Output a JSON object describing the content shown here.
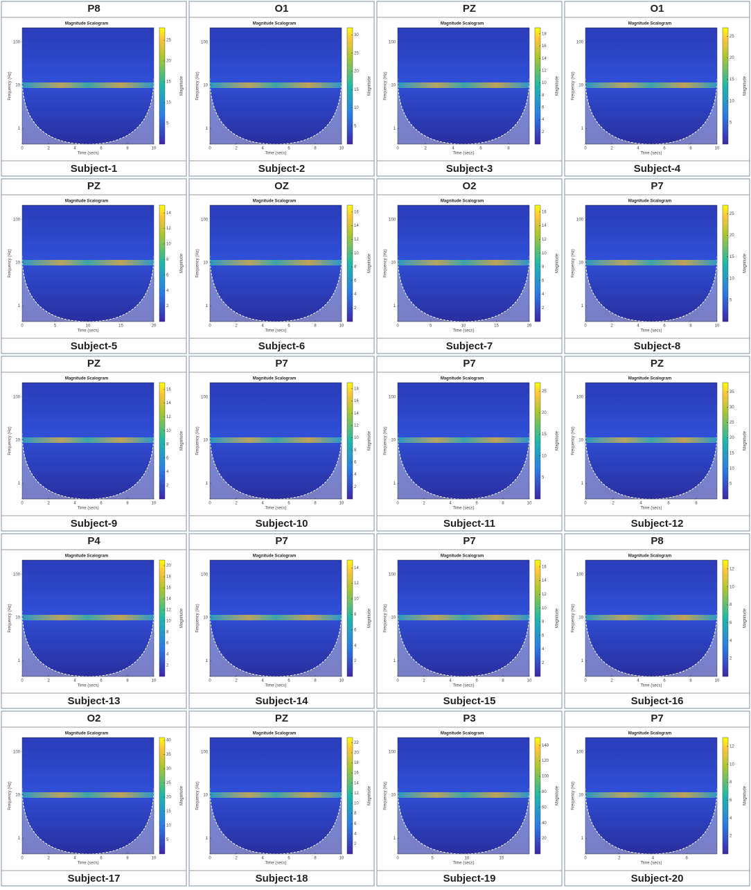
{
  "panel_title": "Magnitude Scalogram",
  "x_label": "Time (secs)",
  "y_label": "Frequency (Hz)",
  "colorbar_label": "Magnitude",
  "yticks": [
    1,
    10,
    100
  ],
  "ylim": [
    0.43,
    215
  ],
  "panels": [
    {
      "channel": "P8",
      "subject": "Subject-1",
      "xlim": [
        0,
        10
      ],
      "xticks": [
        0,
        2,
        4,
        6,
        8,
        10
      ],
      "clim": [
        0,
        28
      ],
      "cticks": [
        5,
        10,
        15,
        20,
        25
      ]
    },
    {
      "channel": "O1",
      "subject": "Subject-2",
      "xlim": [
        0,
        10
      ],
      "xticks": [
        0,
        2,
        4,
        6,
        8,
        10
      ],
      "clim": [
        0,
        32
      ],
      "cticks": [
        5,
        10,
        15,
        20,
        25,
        30
      ]
    },
    {
      "channel": "PZ",
      "subject": "Subject-3",
      "xlim": [
        0,
        9.5
      ],
      "xticks": [
        0,
        2,
        4,
        6,
        8
      ],
      "clim": [
        0,
        19
      ],
      "cticks": [
        2,
        4,
        6,
        8,
        10,
        12,
        14,
        16,
        18
      ]
    },
    {
      "channel": "O1",
      "subject": "Subject-4",
      "xlim": [
        0,
        10
      ],
      "xticks": [
        0,
        2,
        4,
        6,
        8,
        10
      ],
      "clim": [
        0,
        27
      ],
      "cticks": [
        5,
        10,
        15,
        20,
        25
      ]
    },
    {
      "channel": "PZ",
      "subject": "Subject-5",
      "xlim": [
        0,
        20
      ],
      "xticks": [
        0,
        5,
        10,
        15,
        20
      ],
      "clim": [
        0,
        15
      ],
      "cticks": [
        2,
        4,
        6,
        8,
        10,
        12,
        14
      ]
    },
    {
      "channel": "OZ",
      "subject": "Subject-6",
      "xlim": [
        0,
        10
      ],
      "xticks": [
        0,
        2,
        4,
        6,
        8,
        10
      ],
      "clim": [
        0,
        17
      ],
      "cticks": [
        2,
        4,
        6,
        8,
        10,
        12,
        14,
        16
      ]
    },
    {
      "channel": "O2",
      "subject": "Subject-7",
      "xlim": [
        0,
        20
      ],
      "xticks": [
        0,
        5,
        10,
        15,
        20
      ],
      "clim": [
        0,
        17
      ],
      "cticks": [
        2,
        4,
        6,
        8,
        10,
        12,
        14,
        16
      ]
    },
    {
      "channel": "P7",
      "subject": "Subject-8",
      "xlim": [
        0,
        10
      ],
      "xticks": [
        0,
        2,
        4,
        6,
        8,
        10
      ],
      "clim": [
        0,
        27
      ],
      "cticks": [
        5,
        10,
        15,
        20,
        25
      ]
    },
    {
      "channel": "PZ",
      "subject": "Subject-9",
      "xlim": [
        0,
        10
      ],
      "xticks": [
        0,
        2,
        4,
        6,
        8,
        10
      ],
      "clim": [
        0,
        17
      ],
      "cticks": [
        2,
        4,
        6,
        8,
        10,
        12,
        14,
        16
      ]
    },
    {
      "channel": "P7",
      "subject": "Subject-10",
      "xlim": [
        0,
        10
      ],
      "xticks": [
        0,
        2,
        4,
        6,
        8,
        10
      ],
      "clim": [
        0,
        19
      ],
      "cticks": [
        2,
        4,
        6,
        8,
        10,
        12,
        14,
        16,
        18
      ]
    },
    {
      "channel": "P7",
      "subject": "Subject-11",
      "xlim": [
        0,
        10
      ],
      "xticks": [
        0,
        2,
        4,
        6,
        8,
        10
      ],
      "clim": [
        0,
        27
      ],
      "cticks": [
        5,
        10,
        15,
        20,
        25
      ]
    },
    {
      "channel": "PZ",
      "subject": "Subject-12",
      "xlim": [
        0,
        9.5
      ],
      "xticks": [
        0,
        2,
        4,
        6,
        8
      ],
      "clim": [
        0,
        38
      ],
      "cticks": [
        5,
        10,
        15,
        20,
        25,
        30,
        35
      ]
    },
    {
      "channel": "P4",
      "subject": "Subject-13",
      "xlim": [
        0,
        10
      ],
      "xticks": [
        0,
        2,
        4,
        6,
        8,
        10
      ],
      "clim": [
        0,
        21
      ],
      "cticks": [
        2,
        4,
        6,
        8,
        10,
        12,
        14,
        16,
        18,
        20
      ]
    },
    {
      "channel": "P7",
      "subject": "Subject-14",
      "xlim": [
        0,
        10
      ],
      "xticks": [
        0,
        2,
        4,
        6,
        8,
        10
      ],
      "clim": [
        0,
        15
      ],
      "cticks": [
        2,
        4,
        6,
        8,
        10,
        12,
        14
      ]
    },
    {
      "channel": "P7",
      "subject": "Subject-15",
      "xlim": [
        0,
        10
      ],
      "xticks": [
        0,
        2,
        4,
        6,
        8,
        10
      ],
      "clim": [
        0,
        17
      ],
      "cticks": [
        2,
        4,
        6,
        8,
        10,
        12,
        14,
        16
      ]
    },
    {
      "channel": "P8",
      "subject": "Subject-16",
      "xlim": [
        0,
        10
      ],
      "xticks": [
        0,
        2,
        4,
        6,
        8,
        10
      ],
      "clim": [
        0,
        13
      ],
      "cticks": [
        2,
        4,
        6,
        8,
        10,
        12
      ]
    },
    {
      "channel": "O2",
      "subject": "Subject-17",
      "xlim": [
        0,
        10
      ],
      "xticks": [
        0,
        2,
        4,
        6,
        8,
        10
      ],
      "clim": [
        0,
        41
      ],
      "cticks": [
        5,
        10,
        15,
        20,
        25,
        30,
        35,
        40
      ]
    },
    {
      "channel": "PZ",
      "subject": "Subject-18",
      "xlim": [
        0,
        10
      ],
      "xticks": [
        0,
        2,
        4,
        6,
        8,
        10
      ],
      "clim": [
        0,
        23
      ],
      "cticks": [
        2,
        4,
        6,
        8,
        10,
        12,
        14,
        16,
        18,
        20,
        22
      ]
    },
    {
      "channel": "P3",
      "subject": "Subject-19",
      "xlim": [
        0,
        19
      ],
      "xticks": [
        0,
        5,
        10,
        15
      ],
      "clim": [
        0,
        150
      ],
      "cticks": [
        20,
        40,
        60,
        80,
        100,
        120,
        140
      ]
    },
    {
      "channel": "P7",
      "subject": "Subject-20",
      "xlim": [
        0,
        7.8
      ],
      "xticks": [
        0,
        2,
        4,
        6
      ],
      "clim": [
        0,
        13
      ],
      "cticks": [
        2,
        4,
        6,
        8,
        10,
        12
      ]
    }
  ]
}
